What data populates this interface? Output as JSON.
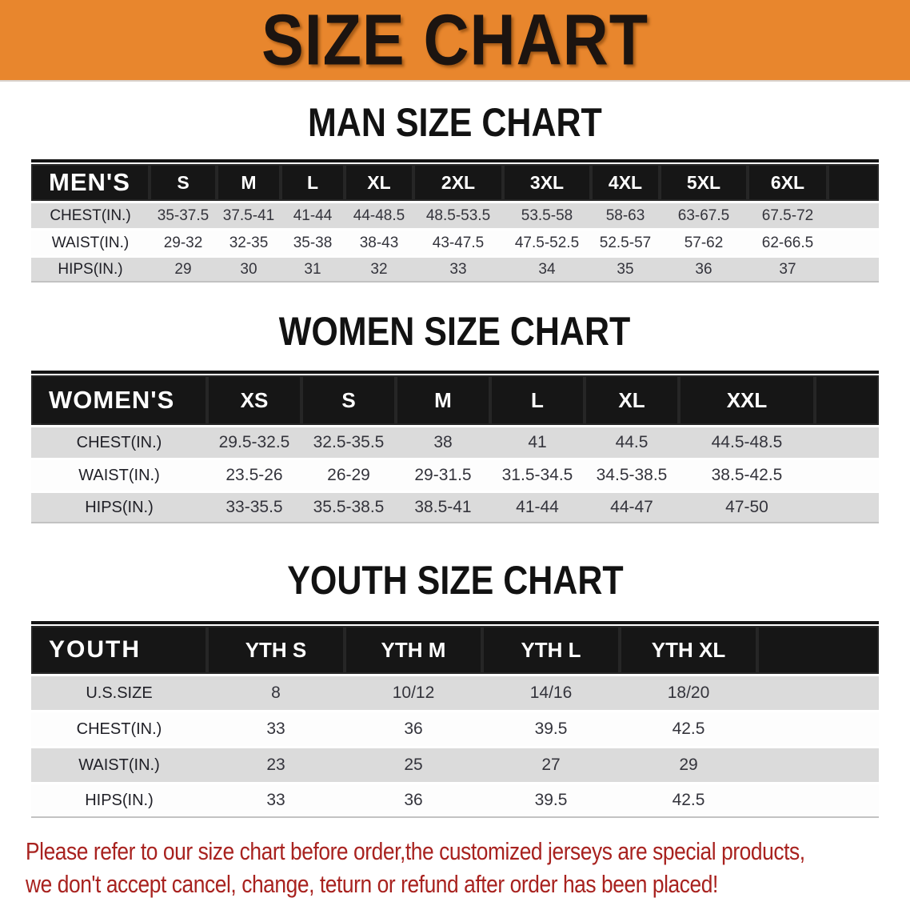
{
  "banner": {
    "title": "SIZE CHART",
    "bg_color": "#E8862D"
  },
  "sections": {
    "men": {
      "heading": "MAN SIZE CHART"
    },
    "women": {
      "heading": "WOMEN SIZE CHART"
    },
    "youth": {
      "heading": "YOUTH SIZE CHART"
    }
  },
  "tables": {
    "men": {
      "header_label": "MEN'S",
      "sizes": [
        "S",
        "M",
        "L",
        "XL",
        "2XL",
        "3XL",
        "4XL",
        "5XL",
        "6XL"
      ],
      "rows": [
        {
          "label": "CHEST(IN.)",
          "values": [
            "35-37.5",
            "37.5-41",
            "41-44",
            "44-48.5",
            "48.5-53.5",
            "53.5-58",
            "58-63",
            "63-67.5",
            "67.5-72"
          ]
        },
        {
          "label": "WAIST(IN.)",
          "values": [
            "29-32",
            "32-35",
            "35-38",
            "38-43",
            "43-47.5",
            "47.5-52.5",
            "52.5-57",
            "57-62",
            "62-66.5"
          ]
        },
        {
          "label": "HIPS(IN.)",
          "values": [
            "29",
            "30",
            "31",
            "32",
            "33",
            "34",
            "35",
            "36",
            "37"
          ]
        }
      ]
    },
    "women": {
      "header_label": "WOMEN'S",
      "sizes": [
        "XS",
        "S",
        "M",
        "L",
        "XL",
        "XXL"
      ],
      "rows": [
        {
          "label": "CHEST(IN.)",
          "values": [
            "29.5-32.5",
            "32.5-35.5",
            "38",
            "41",
            "44.5",
            "44.5-48.5"
          ]
        },
        {
          "label": "WAIST(IN.)",
          "values": [
            "23.5-26",
            "26-29",
            "29-31.5",
            "31.5-34.5",
            "34.5-38.5",
            "38.5-42.5"
          ]
        },
        {
          "label": "HIPS(IN.)",
          "values": [
            "33-35.5",
            "35.5-38.5",
            "38.5-41",
            "41-44",
            "44-47",
            "47-50"
          ]
        }
      ]
    },
    "youth": {
      "header_label": "YOUTH",
      "sizes": [
        "YTH S",
        "YTH M",
        "YTH L",
        "YTH XL"
      ],
      "rows": [
        {
          "label": "U.S.SIZE",
          "values": [
            "8",
            "10/12",
            "14/16",
            "18/20"
          ]
        },
        {
          "label": "CHEST(IN.)",
          "values": [
            "33",
            "36",
            "39.5",
            "42.5"
          ]
        },
        {
          "label": "WAIST(IN.)",
          "values": [
            "23",
            "25",
            "27",
            "29"
          ]
        },
        {
          "label": "HIPS(IN.)",
          "values": [
            "33",
            "36",
            "39.5",
            "42.5"
          ]
        }
      ]
    }
  },
  "footer": {
    "line1": "Please refer to our size chart before order,the customized jerseys are special products,",
    "line2": "we don't accept cancel, change, teturn or refund after order has been placed!",
    "text_color": "#A8221F"
  },
  "colors": {
    "banner_orange": "#E8862D",
    "header_black": "#161616",
    "row_gray": "#DBDBDB",
    "row_white": "#FDFDFD"
  }
}
